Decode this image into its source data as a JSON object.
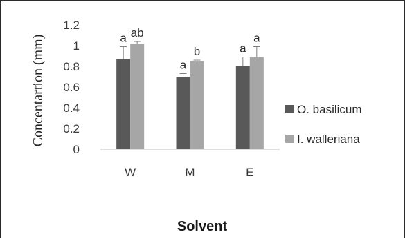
{
  "chart_data": {
    "type": "bar",
    "categories": [
      "W",
      "M",
      "E"
    ],
    "series": [
      {
        "name": "O. basilicum",
        "color": "#595959",
        "values": [
          0.87,
          0.7,
          0.8
        ],
        "errors": [
          0.12,
          0.03,
          0.09
        ],
        "labels": [
          "a",
          "a",
          "a"
        ]
      },
      {
        "name": "I. walleriana",
        "color": "#a6a6a6",
        "values": [
          1.02,
          0.85,
          0.89
        ],
        "errors": [
          0.02,
          0.01,
          0.1
        ],
        "labels": [
          "ab",
          "b",
          "a"
        ]
      }
    ],
    "xlabel": "Solvent",
    "ylabel": "Concentartion (mm)",
    "ylim": [
      0,
      1.2
    ],
    "yticks": [
      "0",
      "0.2",
      "0.4",
      "0.6",
      "0.8",
      "1",
      "1.2"
    ],
    "grid": false,
    "legend_position": "right"
  }
}
